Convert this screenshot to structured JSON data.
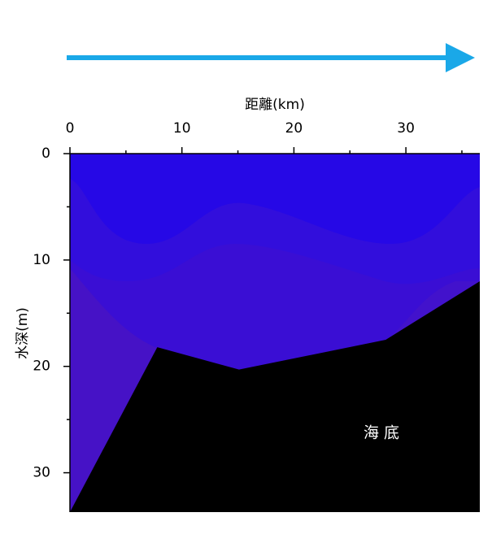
{
  "chart_data": {
    "type": "area",
    "x_label": "距離(km)",
    "y_label": "水深(m)",
    "xlim": [
      0,
      36.6
    ],
    "xticks": [
      0,
      10,
      20,
      30
    ],
    "xminorticks": [
      5,
      15,
      25,
      35
    ],
    "ylim": [
      0,
      33.7
    ],
    "yticks": [
      0,
      10,
      20,
      30
    ],
    "yminorticks": [
      5,
      15,
      25
    ],
    "y_inverted": true,
    "series": [
      {
        "name": "海底",
        "color": "#000000",
        "x": [
          0,
          7.8,
          15.1,
          28.2,
          36.6
        ],
        "values": [
          33.7,
          18.2,
          20.3,
          17.5,
          12.0
        ]
      }
    ]
  }
}
